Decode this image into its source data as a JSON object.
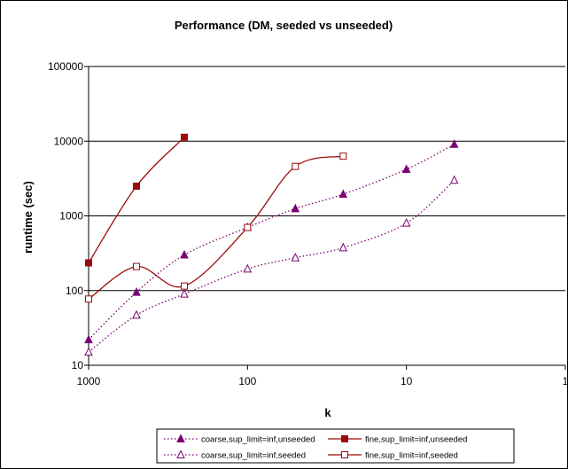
{
  "chart_data": {
    "type": "line",
    "title": "Performance (DM, seeded vs unseeded)",
    "xlabel": "k",
    "ylabel": "runtime (sec)",
    "x_scale": "log",
    "x_reversed": true,
    "xlim": [
      1000,
      1
    ],
    "x_ticks": [
      1000,
      100,
      10,
      1
    ],
    "x_tick_labels": [
      "1000",
      "100",
      "10",
      "1"
    ],
    "y_scale": "log",
    "ylim": [
      10,
      100000
    ],
    "y_ticks": [
      10,
      100,
      1000,
      10000,
      100000
    ],
    "y_tick_labels": [
      "10",
      "100",
      "1000",
      "10000",
      "100000"
    ],
    "grid": "horizontal major gridlines",
    "legend_position": "bottom",
    "series": [
      {
        "name": "coarse,sup_limit=inf,unseeded",
        "color": "#7b0073",
        "line_style": "dotted",
        "marker": "filled-triangle",
        "x": [
          1000,
          500,
          250,
          100,
          50,
          25,
          10,
          5
        ],
        "y": [
          22,
          95,
          300,
          700,
          1250,
          1950,
          4200,
          9100
        ]
      },
      {
        "name": "fine,sup_limit=inf,unseeded",
        "color": "#9b0a0a",
        "line_style": "solid",
        "marker": "filled-square",
        "x": [
          1000,
          500,
          250
        ],
        "y": [
          235,
          2500,
          11300
        ]
      },
      {
        "name": "coarse,sup_limit=inf,seeded",
        "color": "#7b0073",
        "line_style": "dotted",
        "marker": "open-triangle",
        "x": [
          1000,
          500,
          250,
          100,
          50,
          25,
          10,
          5
        ],
        "y": [
          15,
          47,
          90,
          195,
          275,
          375,
          800,
          3000
        ]
      },
      {
        "name": "fine,sup_limit=inf,seeded",
        "color": "#9b0a0a",
        "line_style": "solid",
        "marker": "open-square",
        "x": [
          1000,
          500,
          250,
          100,
          50,
          25
        ],
        "y": [
          77,
          210,
          115,
          700,
          4600,
          6300
        ]
      }
    ]
  }
}
